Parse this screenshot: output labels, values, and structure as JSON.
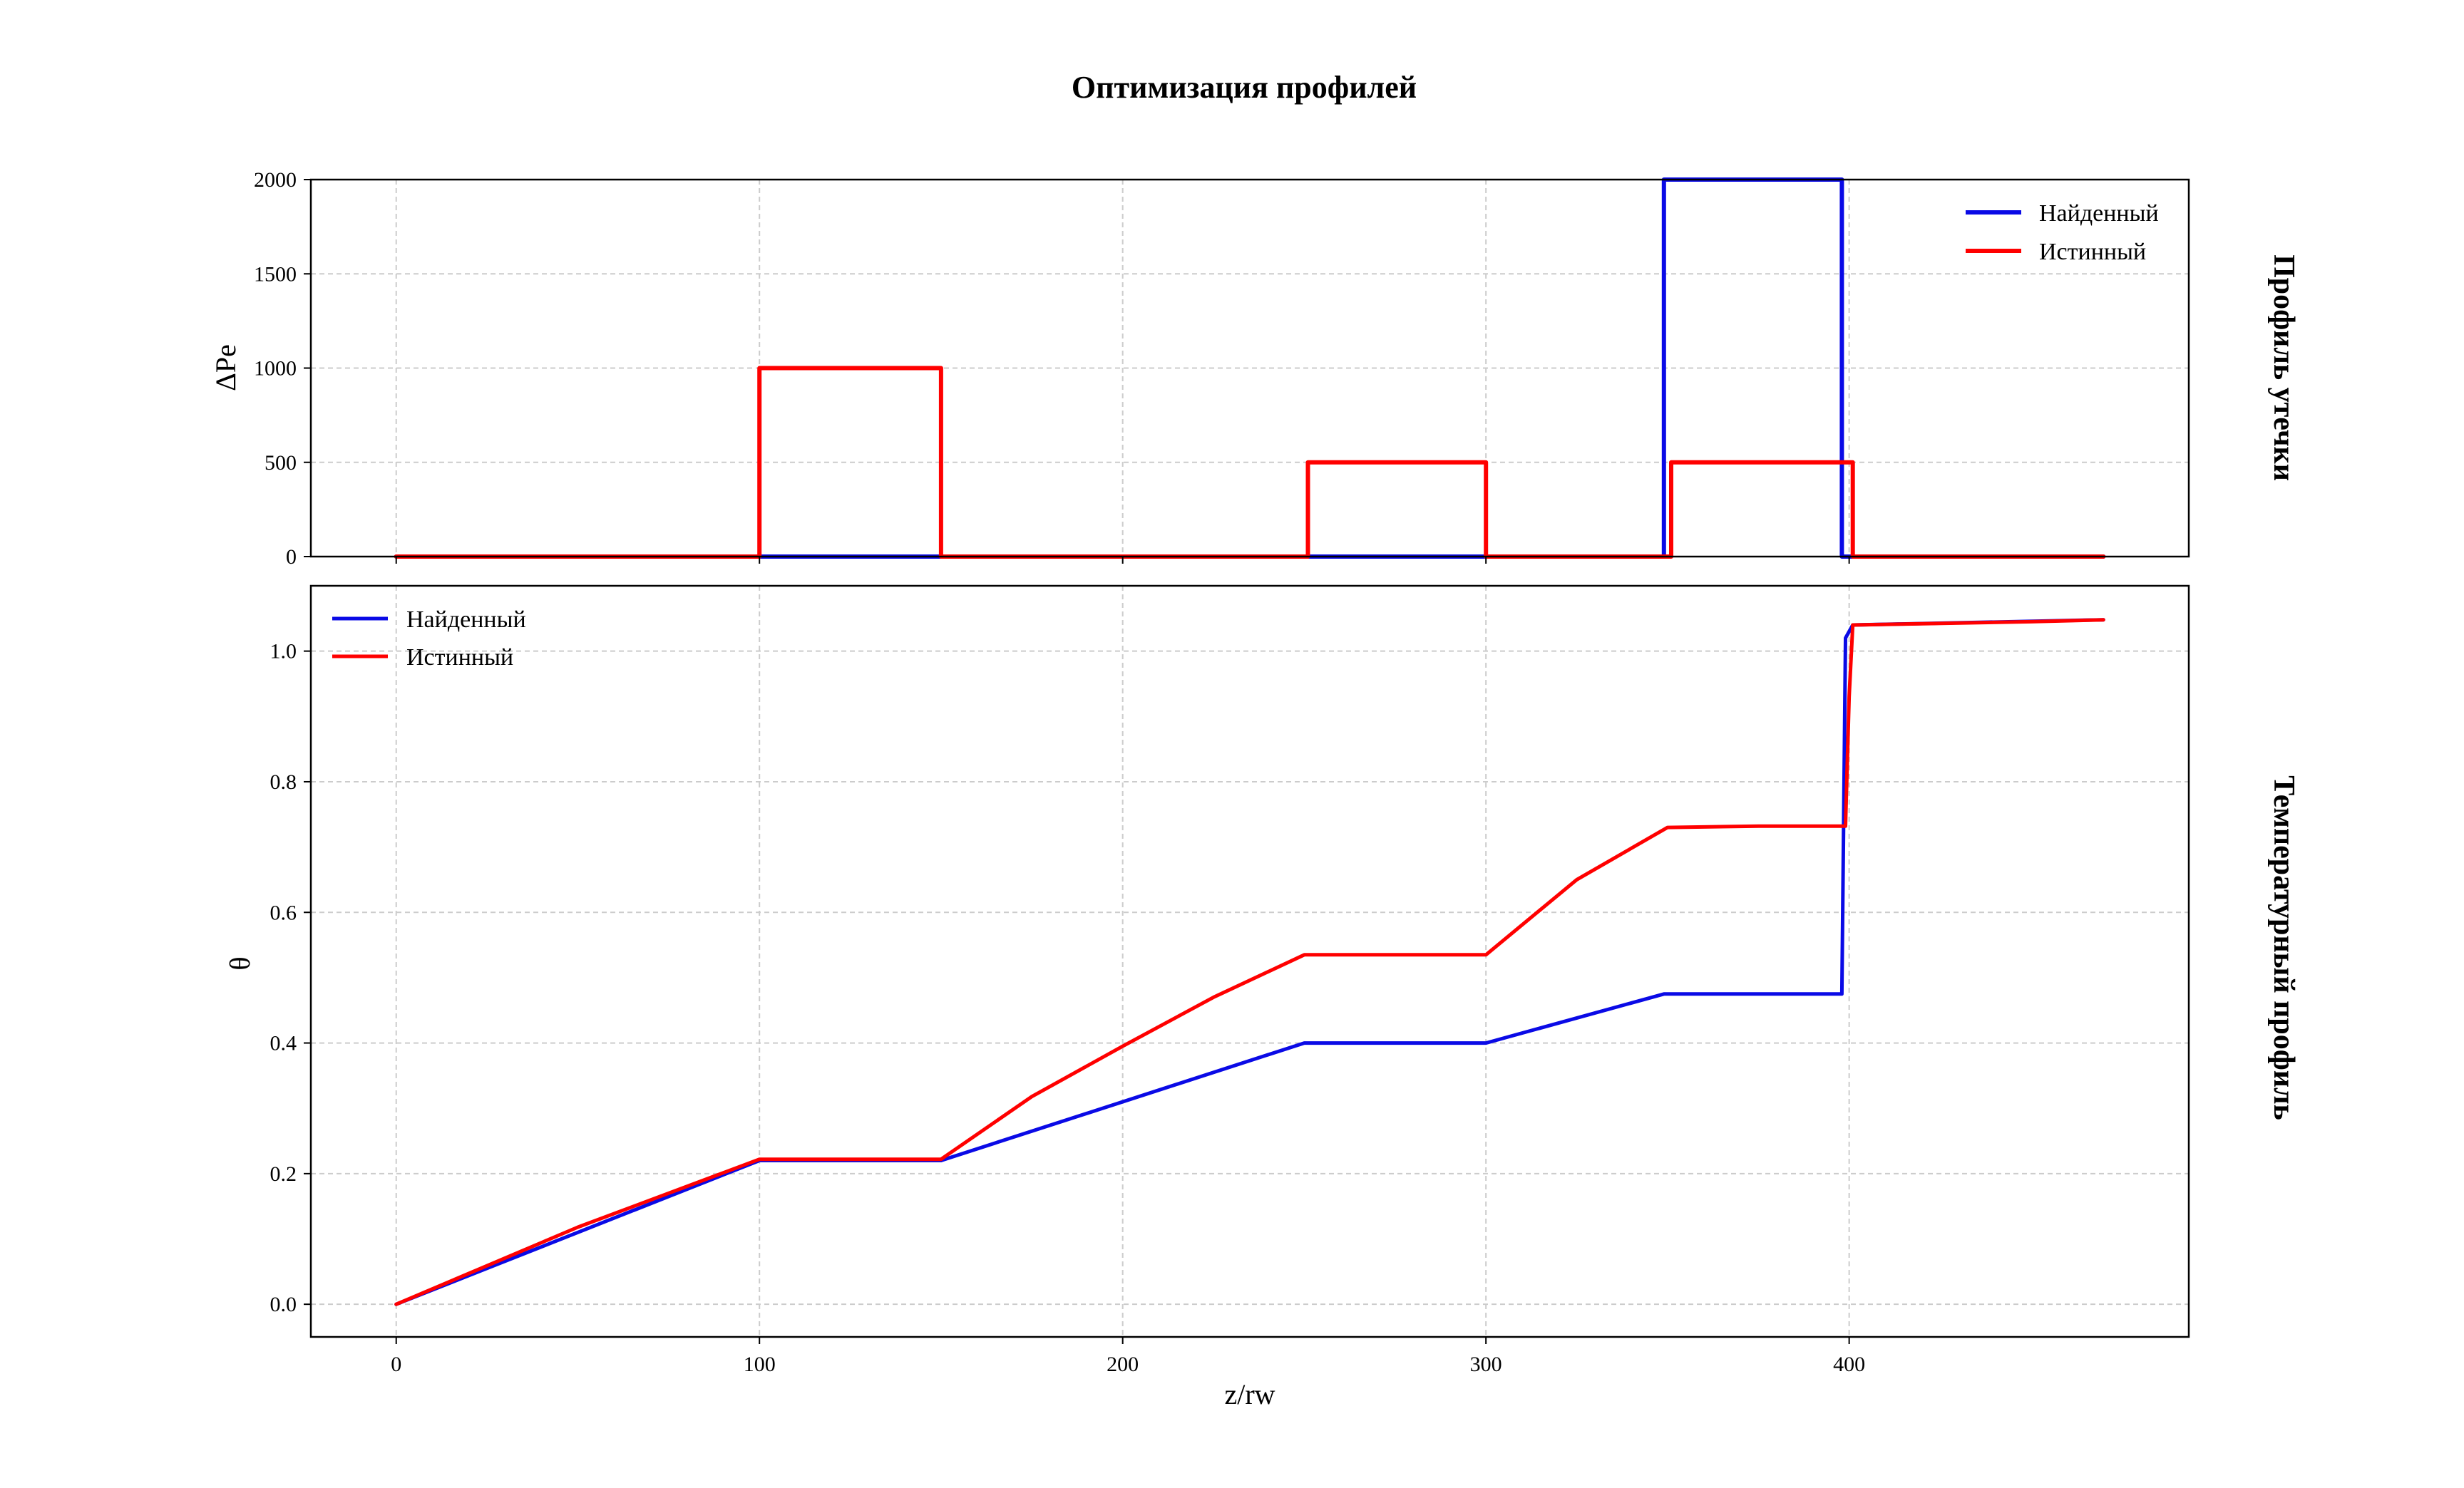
{
  "chart_data": {
    "title": "Оптимизация профилей",
    "xlabel": "z/rw",
    "x_ticks": [
      "0",
      "100",
      "200",
      "300",
      "400"
    ],
    "colors": {
      "found": "#0a0ae6",
      "true": "#ff0000"
    },
    "panels": [
      {
        "type": "line",
        "ylabel": "ΔPe",
        "side_label": "Профиль утечки",
        "ylim": [
          0,
          2000
        ],
        "y_ticks": [
          "0",
          "500",
          "1000",
          "1500",
          "2000"
        ],
        "legend_position": "top-right",
        "series": [
          {
            "name": "Найденный",
            "color": "#0a0ae6",
            "x": [
              0,
              349,
              349,
              398,
              398,
              470
            ],
            "y": [
              0,
              0,
              2000,
              2000,
              0,
              0
            ]
          },
          {
            "name": "Истинный",
            "color": "#ff0000",
            "x": [
              0,
              100,
              100,
              150,
              150,
              251,
              251,
              300,
              300,
              351,
              351,
              401,
              401,
              470
            ],
            "y": [
              0,
              0,
              1000,
              1000,
              0,
              0,
              500,
              500,
              0,
              0,
              500,
              500,
              0,
              0
            ]
          }
        ]
      },
      {
        "type": "line",
        "ylabel": "θ",
        "side_label": "Температурный профиль",
        "ylim": [
          -0.05,
          1.1
        ],
        "y_ticks": [
          "0.0",
          "0.2",
          "0.4",
          "0.6",
          "0.8",
          "1.0"
        ],
        "legend_position": "top-left",
        "series": [
          {
            "name": "Найденный",
            "color": "#0a0ae6",
            "x": [
              0,
              100,
              150,
              250,
              300,
              349,
              398,
              399,
              401,
              470
            ],
            "y": [
              0,
              0.22,
              0.22,
              0.4,
              0.4,
              0.475,
              0.475,
              1.02,
              1.04,
              1.048
            ]
          },
          {
            "name": "Истинный",
            "color": "#ff0000",
            "x": [
              0,
              50,
              100,
              120,
              150,
              175,
              200,
              225,
              250,
              275,
              300,
              325,
              350,
              375,
              399,
              400,
              401,
              420,
              450,
              470
            ],
            "y": [
              0,
              0.118,
              0.222,
              0.222,
              0.222,
              0.318,
              0.395,
              0.47,
              0.535,
              0.535,
              0.535,
              0.65,
              0.73,
              0.732,
              0.732,
              0.93,
              1.04,
              1.042,
              1.045,
              1.048
            ]
          }
        ]
      }
    ]
  }
}
